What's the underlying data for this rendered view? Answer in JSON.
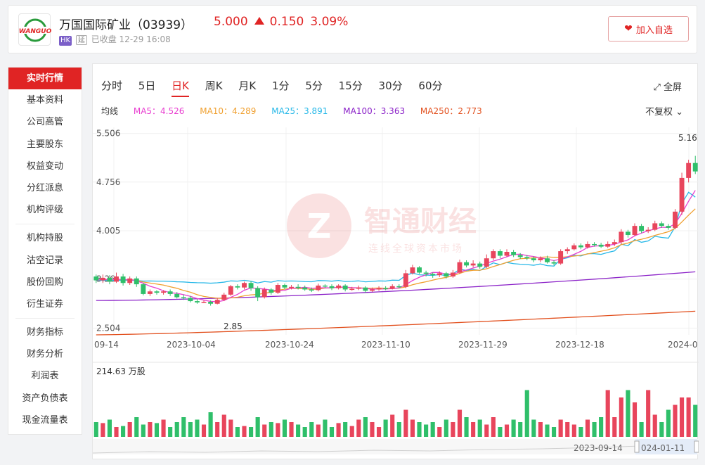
{
  "header": {
    "name": "万国国际矿业（03939）",
    "price": "5.000",
    "change": "0.150",
    "change_pct": "3.09%",
    "badge_hk": "HK",
    "badge_delay": "延",
    "status": "已收盘 12-29 16:08",
    "watch_label": "加入自选",
    "logo_text": "WANGUO"
  },
  "sidebar": {
    "items": [
      "实时行情",
      "基本资料",
      "公司高管",
      "主要股东",
      "权益变动",
      "分红派息",
      "机构评级",
      "机构持股",
      "沽空记录",
      "股份回购",
      "衍生证券",
      "财务指标",
      "财务分析",
      "利润表",
      "资产负债表",
      "现金流量表"
    ]
  },
  "tabs": [
    "分时",
    "5日",
    "日K",
    "周K",
    "月K",
    "1分",
    "5分",
    "15分",
    "30分",
    "60分"
  ],
  "active_tab": "日K",
  "fullscreen_label": "全屏",
  "ma": {
    "label": "均线",
    "ma5": "MA5：4.526",
    "ma10": "MA10：4.289",
    "ma25": "MA25：3.891",
    "ma100": "MA100：3.363",
    "ma250": "MA250：2.773"
  },
  "adjust_label": "不复权",
  "watermark": {
    "main": "智通财经",
    "sub": "连线全球资本市场"
  },
  "chart_data": {
    "type": "candlestick",
    "y_ticks": [
      "5.506",
      "4.756",
      "4.005",
      "3.26",
      "2.504"
    ],
    "x_ticks": [
      "09-14",
      "2023-10-04",
      "2023-10-24",
      "2023-11-10",
      "2023-11-29",
      "2023-12-18",
      "2024-0"
    ],
    "high_label": "5.16",
    "low_label": "2.85",
    "volume_label": "214.63 万股",
    "range_start": "2023-09-14",
    "range_end": "024-01-11",
    "colors": {
      "up": "#e8455c",
      "down": "#2fbf6a",
      "ma5": "#e83fd0",
      "ma10": "#f0a030",
      "ma25": "#27b8e8",
      "ma100": "#8b22c8",
      "ma250": "#e2501e"
    },
    "candles": [
      [
        3.3,
        3.24,
        3.33,
        3.2
      ],
      [
        3.24,
        3.28,
        3.33,
        3.2
      ],
      [
        3.28,
        3.22,
        3.32,
        3.18
      ],
      [
        3.22,
        3.3,
        3.36,
        3.2
      ],
      [
        3.3,
        3.2,
        3.34,
        3.16
      ],
      [
        3.2,
        3.27,
        3.3,
        3.17
      ],
      [
        3.27,
        3.18,
        3.3,
        3.14
      ],
      [
        3.18,
        3.03,
        3.2,
        3.01
      ],
      [
        3.03,
        3.07,
        3.1,
        3.0
      ],
      [
        3.07,
        3.05,
        3.09,
        3.02
      ],
      [
        3.05,
        3.07,
        3.09,
        3.02
      ],
      [
        3.07,
        3.03,
        3.1,
        3.0
      ],
      [
        3.03,
        2.98,
        3.06,
        2.96
      ],
      [
        2.98,
        2.97,
        3.02,
        2.94
      ],
      [
        2.97,
        2.92,
        3.0,
        2.9
      ],
      [
        2.92,
        2.9,
        2.95,
        2.88
      ],
      [
        2.9,
        2.91,
        2.93,
        2.89
      ],
      [
        2.91,
        2.88,
        2.93,
        2.85
      ],
      [
        2.88,
        2.94,
        2.97,
        2.87
      ],
      [
        2.94,
        3.02,
        3.05,
        2.92
      ],
      [
        3.02,
        3.15,
        3.17,
        3.0
      ],
      [
        3.15,
        3.13,
        3.18,
        3.1
      ],
      [
        3.13,
        3.2,
        3.22,
        3.1
      ],
      [
        3.2,
        3.12,
        3.23,
        3.08
      ],
      [
        3.12,
        2.98,
        3.15,
        2.92
      ],
      [
        2.98,
        3.1,
        3.13,
        2.96
      ],
      [
        3.1,
        3.05,
        3.12,
        3.02
      ],
      [
        3.05,
        3.17,
        3.2,
        3.03
      ],
      [
        3.17,
        3.13,
        3.19,
        3.1
      ],
      [
        3.13,
        3.14,
        3.17,
        3.1
      ],
      [
        3.14,
        3.13,
        3.18,
        3.1
      ],
      [
        3.13,
        3.1,
        3.16,
        3.08
      ],
      [
        3.1,
        3.09,
        3.13,
        3.06
      ],
      [
        3.09,
        3.16,
        3.19,
        3.07
      ],
      [
        3.16,
        3.15,
        3.18,
        3.12
      ],
      [
        3.15,
        3.12,
        3.18,
        3.09
      ],
      [
        3.12,
        3.16,
        3.18,
        3.1
      ],
      [
        3.16,
        3.1,
        3.18,
        3.07
      ],
      [
        3.1,
        3.11,
        3.14,
        3.08
      ],
      [
        3.11,
        3.13,
        3.16,
        3.09
      ],
      [
        3.13,
        3.08,
        3.15,
        3.05
      ],
      [
        3.08,
        3.1,
        3.13,
        3.06
      ],
      [
        3.1,
        3.12,
        3.15,
        3.08
      ],
      [
        3.12,
        3.11,
        3.15,
        3.09
      ],
      [
        3.11,
        3.15,
        3.18,
        3.1
      ],
      [
        3.15,
        3.14,
        3.18,
        3.12
      ],
      [
        3.14,
        3.35,
        3.4,
        3.12
      ],
      [
        3.35,
        3.44,
        3.48,
        3.33
      ],
      [
        3.44,
        3.36,
        3.46,
        3.34
      ],
      [
        3.36,
        3.34,
        3.39,
        3.3
      ],
      [
        3.34,
        3.32,
        3.36,
        3.28
      ],
      [
        3.32,
        3.35,
        3.38,
        3.29
      ],
      [
        3.35,
        3.3,
        3.37,
        3.27
      ],
      [
        3.3,
        3.36,
        3.4,
        3.28
      ],
      [
        3.36,
        3.52,
        3.56,
        3.34
      ],
      [
        3.52,
        3.47,
        3.55,
        3.44
      ],
      [
        3.47,
        3.5,
        3.55,
        3.44
      ],
      [
        3.5,
        3.45,
        3.53,
        3.42
      ],
      [
        3.45,
        3.58,
        3.64,
        3.43
      ],
      [
        3.58,
        3.69,
        3.72,
        3.55
      ],
      [
        3.69,
        3.62,
        3.72,
        3.58
      ],
      [
        3.62,
        3.68,
        3.72,
        3.6
      ],
      [
        3.68,
        3.63,
        3.71,
        3.6
      ],
      [
        3.63,
        3.6,
        3.66,
        3.57
      ],
      [
        3.6,
        3.58,
        3.63,
        3.55
      ],
      [
        3.58,
        3.55,
        3.61,
        3.52
      ],
      [
        3.55,
        3.58,
        3.61,
        3.52
      ],
      [
        3.58,
        3.52,
        3.62,
        3.5
      ],
      [
        3.52,
        3.5,
        3.55,
        3.47
      ],
      [
        3.5,
        3.69,
        3.72,
        3.48
      ],
      [
        3.69,
        3.72,
        3.75,
        3.65
      ],
      [
        3.72,
        3.78,
        3.81,
        3.7
      ],
      [
        3.78,
        3.75,
        3.81,
        3.72
      ],
      [
        3.75,
        3.8,
        3.84,
        3.73
      ],
      [
        3.8,
        3.79,
        3.83,
        3.76
      ],
      [
        3.79,
        3.76,
        3.82,
        3.74
      ],
      [
        3.76,
        3.8,
        3.84,
        3.74
      ],
      [
        3.8,
        3.83,
        3.87,
        3.77
      ],
      [
        3.83,
        3.99,
        4.03,
        3.8
      ],
      [
        3.99,
        3.94,
        4.02,
        3.9
      ],
      [
        3.94,
        4.08,
        4.12,
        3.92
      ],
      [
        4.08,
        4.0,
        4.11,
        3.97
      ],
      [
        4.0,
        4.02,
        4.06,
        3.97
      ],
      [
        4.02,
        4.12,
        4.16,
        4.0
      ],
      [
        4.12,
        4.08,
        4.15,
        4.05
      ],
      [
        4.08,
        4.05,
        4.11,
        4.02
      ],
      [
        4.05,
        4.3,
        4.34,
        4.03
      ],
      [
        4.3,
        4.82,
        4.9,
        4.25
      ],
      [
        4.82,
        5.05,
        5.1,
        4.75
      ],
      [
        5.05,
        4.92,
        5.16,
        4.88
      ]
    ],
    "volume": [
      0.3,
      0.28,
      0.35,
      0.2,
      0.22,
      0.3,
      0.4,
      0.25,
      0.3,
      0.28,
      0.35,
      0.2,
      0.3,
      0.4,
      0.3,
      0.35,
      0.25,
      0.5,
      0.3,
      0.45,
      0.35,
      0.2,
      0.22,
      0.2,
      0.4,
      0.25,
      0.3,
      0.28,
      0.35,
      0.3,
      0.25,
      0.2,
      0.3,
      0.25,
      0.35,
      0.2,
      0.28,
      0.3,
      0.22,
      0.35,
      0.4,
      0.3,
      0.2,
      0.35,
      0.45,
      0.3,
      0.55,
      0.35,
      0.3,
      0.25,
      0.3,
      0.2,
      0.35,
      0.3,
      0.55,
      0.4,
      0.3,
      0.35,
      0.25,
      0.4,
      0.2,
      0.25,
      0.35,
      0.3,
      0.95,
      0.35,
      0.3,
      0.25,
      0.2,
      0.35,
      0.3,
      0.25,
      0.2,
      0.35,
      0.3,
      0.4,
      0.95,
      0.4,
      0.8,
      0.95,
      0.7,
      0.3,
      0.95,
      0.45,
      0.3,
      0.55,
      0.65,
      0.8,
      0.8,
      0.65
    ]
  }
}
